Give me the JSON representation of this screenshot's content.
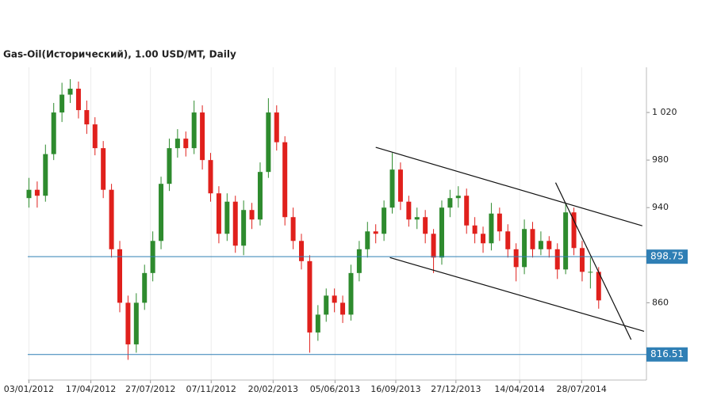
{
  "chart_data": {
    "type": "candlestick",
    "title": "Gas-Oil(Исторический), 1.00 USD/MT, Daily",
    "x": [
      "03/01/2012",
      "17/01/2012",
      "31/01/2012",
      "14/02/2012",
      "28/02/2012",
      "13/03/2012",
      "27/03/2012",
      "10/04/2012",
      "24/04/2012",
      "08/05/2012",
      "22/05/2012",
      "05/06/2012",
      "19/06/2012",
      "03/07/2012",
      "17/07/2012",
      "31/07/2012",
      "14/08/2012",
      "28/08/2012",
      "11/09/2012",
      "25/09/2012",
      "09/10/2012",
      "23/10/2012",
      "06/11/2012",
      "20/11/2012",
      "04/12/2012",
      "18/12/2012",
      "01/01/2013",
      "15/01/2013",
      "29/01/2013",
      "12/02/2013",
      "26/02/2013",
      "12/03/2013",
      "26/03/2013",
      "09/04/2013",
      "23/04/2013",
      "07/05/2013",
      "21/05/2013",
      "04/06/2013",
      "18/06/2013",
      "02/07/2013",
      "16/07/2013",
      "30/07/2013",
      "13/08/2013",
      "27/08/2013",
      "10/09/2013",
      "24/09/2013",
      "08/10/2013",
      "22/10/2013",
      "05/11/2013",
      "19/11/2013",
      "03/12/2013",
      "17/12/2013",
      "31/12/2013",
      "14/01/2014",
      "28/01/2014",
      "11/02/2014",
      "25/02/2014",
      "11/03/2014",
      "25/03/2014",
      "08/04/2014",
      "22/04/2014",
      "06/05/2014",
      "20/05/2014",
      "03/06/2014",
      "17/06/2014",
      "01/07/2014",
      "15/07/2014",
      "29/07/2014",
      "12/08/2014",
      "26/08/2014"
    ],
    "open": [
      948,
      955,
      950,
      985,
      1020,
      1035,
      1040,
      1022,
      1010,
      990,
      955,
      905,
      860,
      825,
      860,
      885,
      912,
      960,
      990,
      998,
      990,
      1020,
      980,
      952,
      918,
      945,
      908,
      938,
      930,
      970,
      1020,
      995,
      932,
      912,
      895,
      835,
      850,
      866,
      860,
      850,
      885,
      905,
      920,
      918,
      940,
      972,
      945,
      930,
      932,
      918,
      898,
      940,
      948,
      950,
      925,
      918,
      910,
      935,
      920,
      905,
      890,
      922,
      905,
      912,
      905,
      888,
      936,
      906,
      886,
      886
    ],
    "high": [
      965,
      962,
      993,
      1028,
      1045,
      1048,
      1046,
      1030,
      1016,
      996,
      960,
      912,
      866,
      868,
      892,
      920,
      966,
      998,
      1006,
      1004,
      1030,
      1026,
      986,
      958,
      952,
      950,
      946,
      944,
      978,
      1032,
      1026,
      1000,
      940,
      918,
      900,
      858,
      872,
      872,
      866,
      892,
      912,
      928,
      926,
      946,
      986,
      978,
      950,
      940,
      938,
      922,
      946,
      955,
      958,
      956,
      932,
      924,
      944,
      940,
      926,
      910,
      930,
      928,
      920,
      916,
      910,
      944,
      940,
      912,
      898,
      890
    ],
    "low": [
      940,
      940,
      945,
      980,
      1012,
      1028,
      1015,
      1002,
      984,
      948,
      898,
      852,
      812,
      818,
      854,
      878,
      905,
      954,
      982,
      983,
      985,
      972,
      945,
      910,
      912,
      902,
      900,
      922,
      925,
      965,
      988,
      925,
      905,
      888,
      818,
      828,
      844,
      852,
      843,
      845,
      878,
      898,
      910,
      912,
      935,
      938,
      924,
      922,
      910,
      885,
      892,
      932,
      940,
      918,
      910,
      902,
      904,
      912,
      898,
      878,
      884,
      898,
      900,
      898,
      880,
      884,
      900,
      878,
      872,
      855
    ],
    "close": [
      955,
      950,
      985,
      1020,
      1035,
      1040,
      1022,
      1010,
      990,
      955,
      905,
      860,
      825,
      860,
      885,
      912,
      960,
      990,
      998,
      990,
      1020,
      980,
      952,
      918,
      945,
      908,
      938,
      930,
      970,
      1020,
      995,
      932,
      912,
      895,
      835,
      850,
      866,
      860,
      850,
      885,
      905,
      920,
      918,
      940,
      972,
      945,
      930,
      932,
      918,
      898,
      940,
      948,
      950,
      925,
      918,
      910,
      935,
      920,
      905,
      890,
      922,
      905,
      912,
      905,
      888,
      936,
      906,
      886,
      886,
      862
    ],
    "up_color": "#2e8b2e",
    "down_color": "#e0201c",
    "xlim": [
      "01/01/2012",
      "15/11/2014"
    ],
    "xticks": [
      "03/01/2012",
      "17/04/2012",
      "27/07/2012",
      "07/11/2012",
      "20/02/2013",
      "05/06/2013",
      "16/09/2013",
      "27/12/2013",
      "14/04/2014",
      "28/07/2014"
    ],
    "ylim": [
      795,
      1058
    ],
    "yticks": [
      {
        "value": 1020,
        "label": "1 020"
      },
      980,
      940,
      860
    ],
    "grid": true,
    "levels": [
      898.75,
      816.51
    ],
    "level_color": "#2f7fb5",
    "trendlines": [
      {
        "x": [
          "13/08/2013",
          "08/11/2014"
        ],
        "y": [
          990.7,
          924.7
        ]
      },
      {
        "x": [
          "06/09/2013",
          "11/11/2014"
        ],
        "y": [
          898,
          836
        ]
      },
      {
        "x": [
          "14/06/2014",
          "20/10/2014"
        ],
        "y": [
          961,
          829
        ]
      }
    ]
  }
}
